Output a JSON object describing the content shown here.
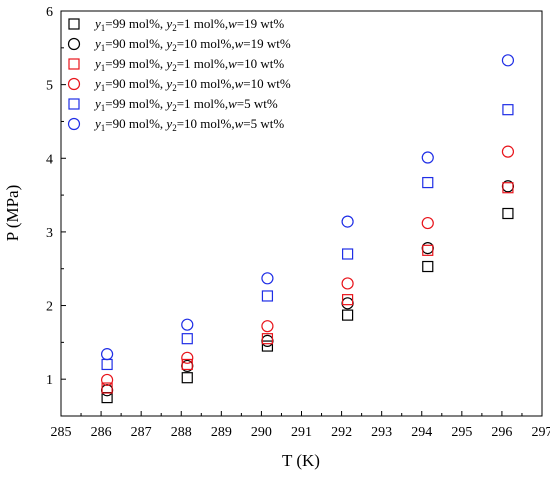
{
  "chart_data": {
    "type": "scatter",
    "xlabel": "T (K)",
    "ylabel": "P (MPa)",
    "xlim": [
      285,
      297
    ],
    "ylim": [
      0.5,
      6
    ],
    "xticks": [
      "285",
      "286",
      "287",
      "288",
      "289",
      "290",
      "291",
      "292",
      "293",
      "294",
      "295",
      "296",
      "297"
    ],
    "yticks": [
      "1",
      "2",
      "3",
      "4",
      "5",
      "6"
    ],
    "legend_position": "top-left",
    "series": [
      {
        "name": "y1=99 mol%, y2=1 mol%,w=19 wt%",
        "legend": {
          "y1": "99",
          "y2": "1",
          "w": "19"
        },
        "marker": "square",
        "color": "#000000",
        "x": [
          286.15,
          288.15,
          290.15,
          292.15,
          294.15,
          296.15
        ],
        "y": [
          0.75,
          1.02,
          1.45,
          1.87,
          2.53,
          3.25
        ]
      },
      {
        "name": "y1=90 mol%, y2=10 mol%,w=19 wt%",
        "legend": {
          "y1": "90",
          "y2": "10",
          "w": "19"
        },
        "marker": "circle",
        "color": "#000000",
        "x": [
          286.15,
          288.15,
          290.15,
          292.15,
          294.15,
          296.15
        ],
        "y": [
          0.85,
          1.18,
          1.52,
          2.03,
          2.78,
          3.62
        ]
      },
      {
        "name": "y1=99 mol%, y2=1 mol%,w=10 wt%",
        "legend": {
          "y1": "99",
          "y2": "1",
          "w": "10"
        },
        "marker": "square",
        "color": "#e8141b",
        "x": [
          286.15,
          288.15,
          290.15,
          292.15,
          294.15,
          296.15
        ],
        "y": [
          0.88,
          1.2,
          1.55,
          2.08,
          2.75,
          3.6
        ]
      },
      {
        "name": "y1=90 mol%, y2=10 mol%,w=10 wt%",
        "legend": {
          "y1": "90",
          "y2": "10",
          "w": "10"
        },
        "marker": "circle",
        "color": "#e8141b",
        "x": [
          286.15,
          288.15,
          290.15,
          292.15,
          294.15,
          296.15
        ],
        "y": [
          0.99,
          1.29,
          1.72,
          2.3,
          3.12,
          4.09
        ]
      },
      {
        "name": "y1=99 mol%, y2=1 mol%,w=5 wt%",
        "legend": {
          "y1": "99",
          "y2": "1",
          "w": "5"
        },
        "marker": "square",
        "color": "#1f2ee6",
        "x": [
          286.15,
          288.15,
          290.15,
          292.15,
          294.15,
          296.15
        ],
        "y": [
          1.2,
          1.55,
          2.13,
          2.7,
          3.67,
          4.66
        ]
      },
      {
        "name": "y1=90 mol%, y2=10 mol%,w=5 wt%",
        "legend": {
          "y1": "90",
          "y2": "10",
          "w": "5"
        },
        "marker": "circle",
        "color": "#1f2ee6",
        "x": [
          286.15,
          288.15,
          290.15,
          292.15,
          294.15,
          296.15
        ],
        "y": [
          1.34,
          1.74,
          2.37,
          3.14,
          4.01,
          5.33
        ]
      }
    ]
  }
}
